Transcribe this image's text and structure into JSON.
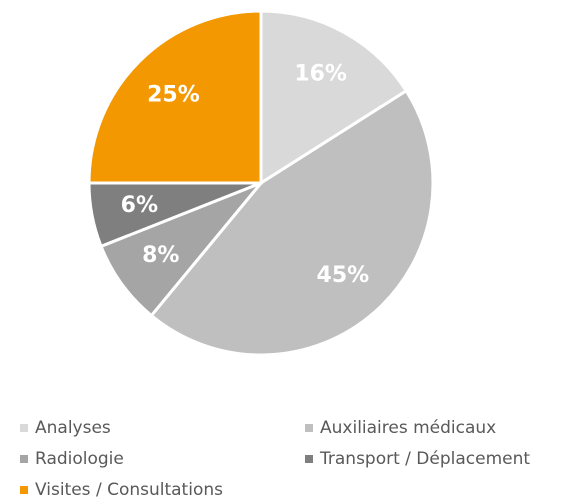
{
  "chart_data": {
    "type": "pie",
    "categories": [
      "Analyses",
      "Auxiliaires médicaux",
      "Radiologie",
      "Transport / Déplacement",
      "Visites / Consultations"
    ],
    "values": [
      16,
      45,
      8,
      6,
      25
    ],
    "value_labels": [
      "16%",
      "45%",
      "8%",
      "6%",
      "25%"
    ],
    "colors": [
      "#d9d9d9",
      "#bfbfbf",
      "#a5a5a5",
      "#7f7f7f",
      "#f39800"
    ],
    "legend": "bottom"
  }
}
